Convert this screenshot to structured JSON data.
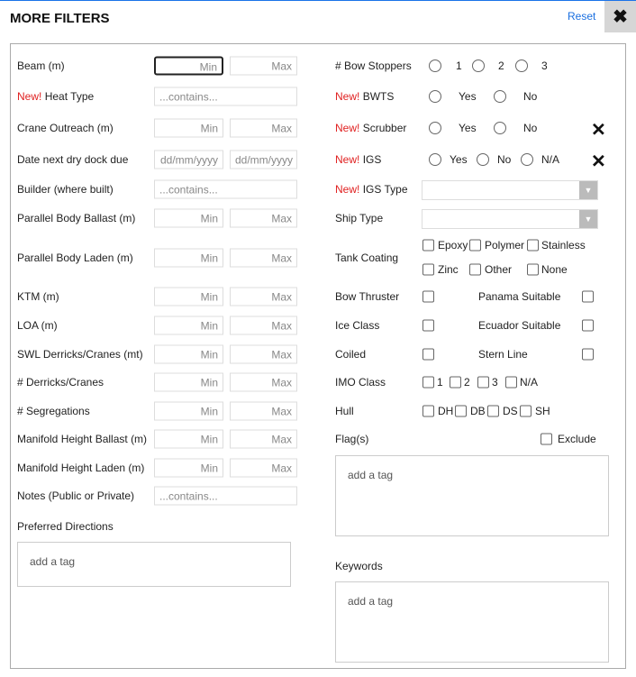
{
  "header": {
    "title": "MORE FILTERS",
    "reset": "Reset",
    "close_icon": "close-icon"
  },
  "new_tag": "New!",
  "left": [
    {
      "label": "Beam (m)",
      "type": "range",
      "min": "Min",
      "max": "Max",
      "focused": true
    },
    {
      "label": "Heat Type",
      "new": true,
      "type": "text",
      "placeholder": "...contains..."
    },
    {
      "label": "Crane Outreach (m)",
      "type": "range",
      "min": "Min",
      "max": "Max"
    },
    {
      "label": "Date next dry dock due",
      "type": "range",
      "min": "dd/mm/yyyy",
      "max": "dd/mm/yyyy"
    },
    {
      "label": "Builder (where built)",
      "type": "text",
      "placeholder": "...contains..."
    },
    {
      "label": "Parallel Body Ballast (m)",
      "type": "range",
      "min": "Min",
      "max": "Max"
    },
    {
      "label": "Parallel Body Laden (m)",
      "type": "range",
      "min": "Min",
      "max": "Max"
    },
    {
      "label": "KTM (m)",
      "type": "range",
      "min": "Min",
      "max": "Max"
    },
    {
      "label": "LOA (m)",
      "type": "range",
      "min": "Min",
      "max": "Max"
    },
    {
      "label": "SWL Derricks/Cranes (mt)",
      "type": "range",
      "min": "Min",
      "max": "Max"
    },
    {
      "label": "# Derricks/Cranes",
      "type": "range",
      "min": "Min",
      "max": "Max"
    },
    {
      "label": "# Segregations",
      "type": "range",
      "min": "Min",
      "max": "Max"
    },
    {
      "label": "Manifold Height Ballast (m)",
      "type": "range",
      "min": "Min",
      "max": "Max"
    },
    {
      "label": "Manifold Height Laden (m)",
      "type": "range",
      "min": "Min",
      "max": "Max"
    },
    {
      "label": "Notes (Public or Private)",
      "type": "text",
      "placeholder": "...contains..."
    }
  ],
  "preferred_directions": {
    "label": "Preferred Directions",
    "placeholder": "add a tag"
  },
  "right": {
    "bow_stoppers": {
      "label": "# Bow Stoppers",
      "options": [
        "1",
        "2",
        "3"
      ]
    },
    "bwts": {
      "label": "BWTS",
      "options": [
        "Yes",
        "No"
      ]
    },
    "scrubber": {
      "label": "Scrubber",
      "options": [
        "Yes",
        "No"
      ]
    },
    "igs": {
      "label": "IGS",
      "options": [
        "Yes",
        "No",
        "N/A"
      ]
    },
    "igs_type": {
      "label": "IGS Type",
      "value": ""
    },
    "ship_type": {
      "label": "Ship Type",
      "value": ""
    },
    "tank_coating": {
      "label": "Tank Coating",
      "options": [
        "Epoxy",
        "Polymer",
        "Stainless",
        "Zinc",
        "Other",
        "None"
      ]
    },
    "bow_thruster": "Bow Thruster",
    "panama": "Panama Suitable",
    "ice_class": "Ice Class",
    "ecuador": "Ecuador Suitable",
    "coiled": "Coiled",
    "stern_line": "Stern Line",
    "imo_class": {
      "label": "IMO Class",
      "options": [
        "1",
        "2",
        "3",
        "N/A"
      ]
    },
    "hull": {
      "label": "Hull",
      "options": [
        "DH",
        "DB",
        "DS",
        "SH"
      ]
    },
    "flags": {
      "label": "Flag(s)",
      "exclude": "Exclude",
      "placeholder": "add a tag"
    },
    "keywords": {
      "label": "Keywords",
      "placeholder": "add a tag"
    }
  }
}
